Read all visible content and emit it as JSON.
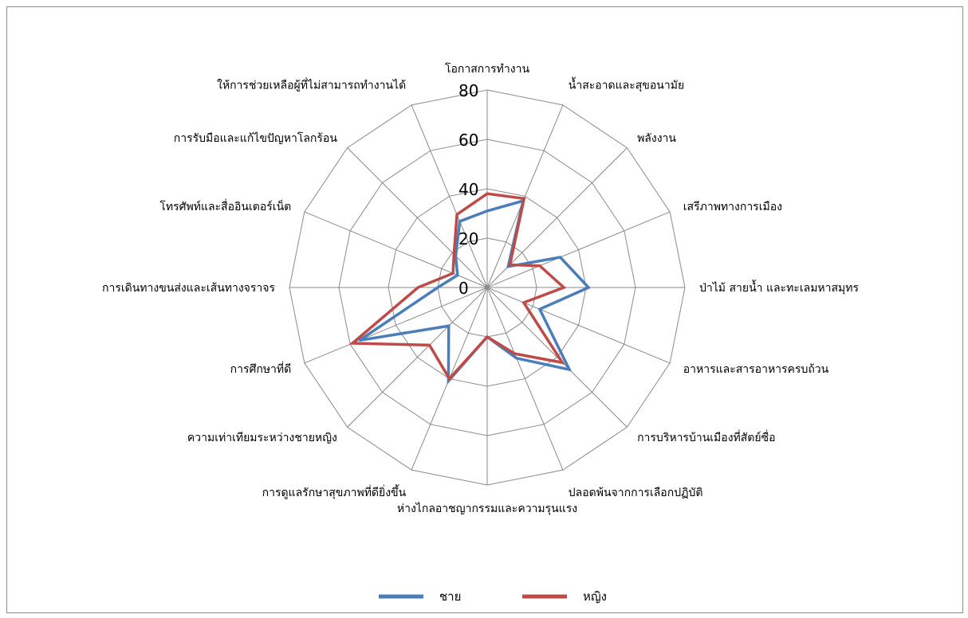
{
  "chart_data": {
    "type": "radar",
    "categories": [
      "โอกาสการทำงาน",
      "น้ำสะอาดและสุขอนามัย",
      "พลังงาน",
      "เสรีภาพทางการเมือง",
      "ป่าไม้ สายน้ำ และทะเลมหาสมุทร",
      "อาหารและสารอาหารครบถ้วน",
      "การบริหารบ้านเมืองที่สัตย์ซื่อ",
      "ปลอดพ้นจากการเลือกปฏิบัติ",
      "ห่างไกลอาชญากรรมและความรุนแรง",
      "การดูแลรักษาสุขภาพที่ดียิ่งขึ้น",
      "ความเท่าเทียมระหว่างชายหญิง",
      "การศึกษาที่ดี",
      "การเดินทางขนส่งและเส้นทางจราจร",
      "โทรศัพท์และสื่ออินเตอร์เน็ต",
      "การรับมือและแก้ไขปัญหาโลกร้อน",
      "ให้การช่วยเหลือผู้ที่ไม่สามารถทำงานได้"
    ],
    "series": [
      {
        "name": "ชาย",
        "color": "#4a7ebb",
        "values": [
          31,
          38,
          12,
          32,
          41,
          23,
          47,
          31,
          20,
          41,
          22,
          56,
          20,
          13,
          18,
          29
        ]
      },
      {
        "name": "หญิง",
        "color": "#be4b48",
        "values": [
          38,
          39,
          13,
          23,
          31,
          16,
          43,
          29,
          20,
          40,
          33,
          59,
          28,
          15,
          19,
          32
        ]
      }
    ],
    "rlim": [
      0,
      80
    ],
    "ticks": [
      "0",
      "20",
      "40",
      "60",
      "80"
    ],
    "grid": true,
    "legend_position": "bottom"
  }
}
